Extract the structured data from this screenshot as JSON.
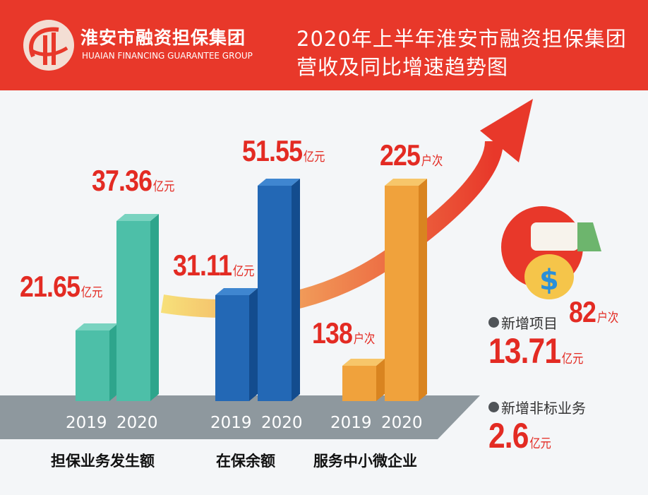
{
  "header": {
    "org_name": "淮安市融资担保集团",
    "org_name_en": "HUAIAN FINANCING GUARANTEE GROUP",
    "title_line1": "2020年上半年淮安市融资担保集团",
    "title_line2": "营收及同比增速趋势图"
  },
  "chart_data": {
    "type": "bar",
    "title": "2020年上半年淮安市融资担保集团营收及同比增速趋势图",
    "groups": [
      {
        "category": "担保业务发生额",
        "unit": "亿元",
        "x": [
          "2019",
          "2020"
        ],
        "values": [
          21.65,
          37.36
        ],
        "color": "#4dbfa8"
      },
      {
        "category": "在保余额",
        "unit": "亿元",
        "x": [
          "2019",
          "2020"
        ],
        "values": [
          31.11,
          51.55
        ],
        "color": "#2368b5"
      },
      {
        "category": "服务中小微企业",
        "unit": "户次",
        "x": [
          "2019",
          "2020"
        ],
        "values": [
          138,
          225
        ],
        "color": "#f0a23c"
      }
    ],
    "labels": [
      [
        "21.65",
        "37.36"
      ],
      [
        "31.11",
        "51.55"
      ],
      [
        "138",
        "225"
      ]
    ]
  },
  "side": {
    "item1_label": "新增项目",
    "item1_count": "82",
    "item1_count_unit": "户次",
    "item1_amount": "13.71",
    "item1_amount_unit": "亿元",
    "item2_label": "新增非标业务",
    "item2_amount": "2.6",
    "item2_amount_unit": "亿元"
  },
  "colors": {
    "header": "#e8382a",
    "value": "#e32b23"
  }
}
